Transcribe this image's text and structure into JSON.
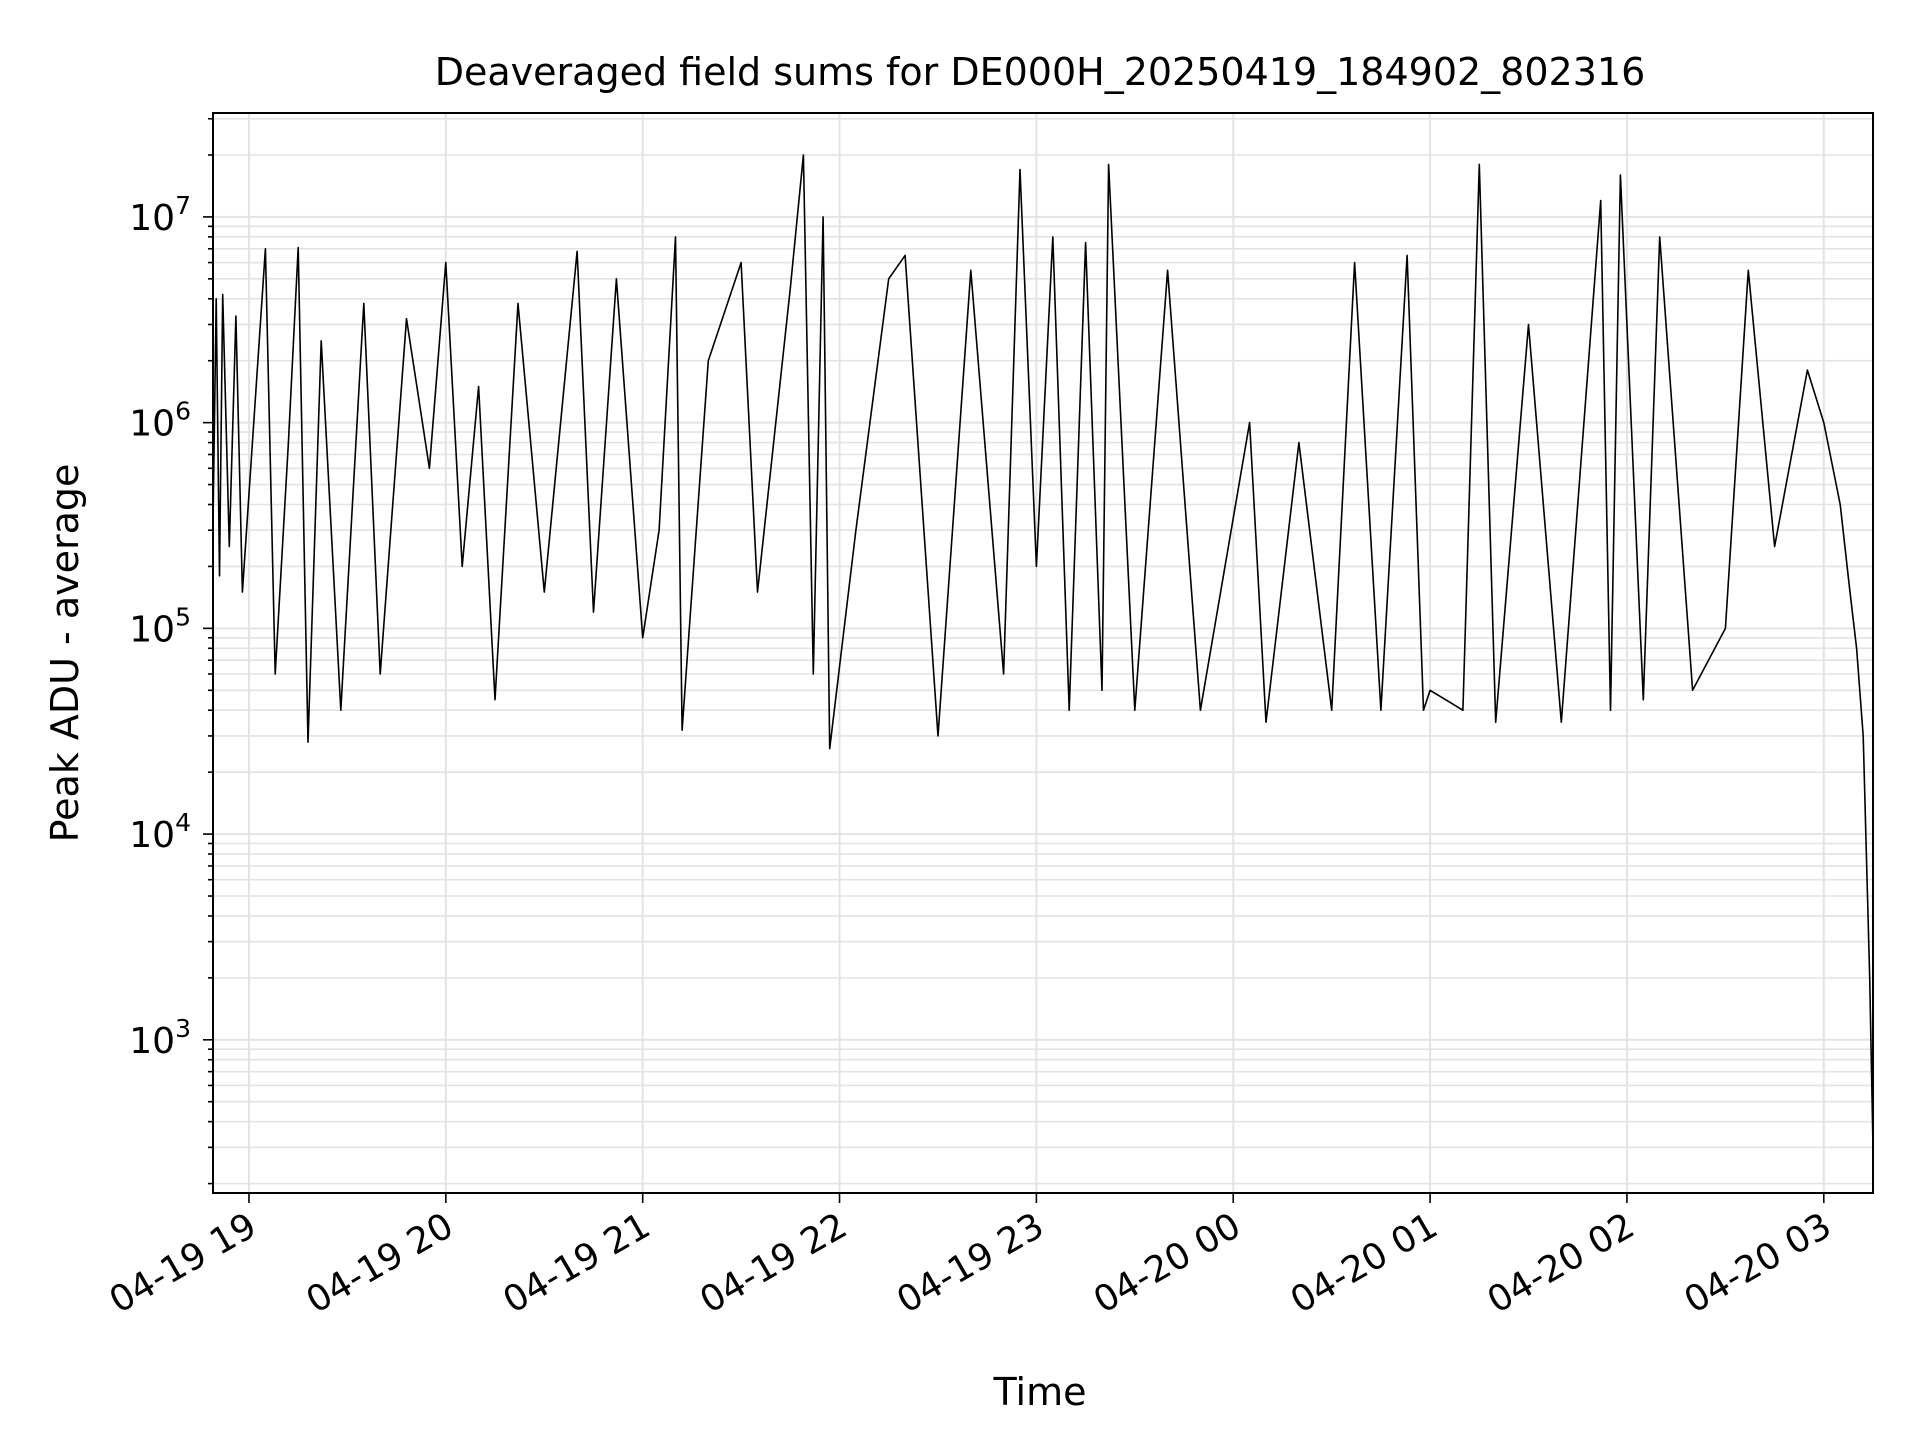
{
  "chart_data": {
    "type": "line",
    "title": "Deaveraged field sums for DE000H_20250419_184902_802316",
    "xlabel": "Time",
    "ylabel": "Peak ADU - average",
    "yscale": "log",
    "grid": true,
    "ylim": [
      180,
      32000000
    ],
    "xlim": [
      "2025-04-19 18:49:02",
      "2025-04-20 03:15:00"
    ],
    "x_ticks": [
      "2025-04-19 19:00",
      "2025-04-19 20:00",
      "2025-04-19 21:00",
      "2025-04-19 22:00",
      "2025-04-19 23:00",
      "2025-04-20 00:00",
      "2025-04-20 01:00",
      "2025-04-20 02:00",
      "2025-04-20 03:00"
    ],
    "x_tick_labels": [
      "04-19 19",
      "04-19 20",
      "04-19 21",
      "04-19 22",
      "04-19 23",
      "04-20 00",
      "04-20 01",
      "04-20 02",
      "04-20 03"
    ],
    "y_ticks": [
      1000,
      10000,
      100000,
      1000000,
      10000000
    ],
    "y_tick_labels": [
      {
        "base": "10",
        "exp": "3"
      },
      {
        "base": "10",
        "exp": "4"
      },
      {
        "base": "10",
        "exp": "5"
      },
      {
        "base": "10",
        "exp": "6"
      },
      {
        "base": "10",
        "exp": "7"
      }
    ],
    "series": [
      {
        "color": "#000000",
        "points": [
          [
            "2025-04-19 18:49",
            300000
          ],
          [
            "2025-04-19 18:50",
            4000000
          ],
          [
            "2025-04-19 18:51",
            180000
          ],
          [
            "2025-04-19 18:52",
            4200000
          ],
          [
            "2025-04-19 18:54",
            250000
          ],
          [
            "2025-04-19 18:56",
            3300000
          ],
          [
            "2025-04-19 18:58",
            150000
          ],
          [
            "2025-04-19 19:05",
            7000000
          ],
          [
            "2025-04-19 19:08",
            60000
          ],
          [
            "2025-04-19 19:12",
            800000
          ],
          [
            "2025-04-19 19:15",
            7100000
          ],
          [
            "2025-04-19 19:18",
            28000
          ],
          [
            "2025-04-19 19:22",
            2500000
          ],
          [
            "2025-04-19 19:28",
            40000
          ],
          [
            "2025-04-19 19:35",
            3800000
          ],
          [
            "2025-04-19 19:40",
            60000
          ],
          [
            "2025-04-19 19:48",
            3200000
          ],
          [
            "2025-04-19 19:55",
            600000
          ],
          [
            "2025-04-19 20:00",
            6000000
          ],
          [
            "2025-04-19 20:05",
            200000
          ],
          [
            "2025-04-19 20:10",
            1500000
          ],
          [
            "2025-04-19 20:15",
            45000
          ],
          [
            "2025-04-19 20:22",
            3800000
          ],
          [
            "2025-04-19 20:30",
            150000
          ],
          [
            "2025-04-19 20:40",
            6800000
          ],
          [
            "2025-04-19 20:45",
            120000
          ],
          [
            "2025-04-19 20:52",
            5000000
          ],
          [
            "2025-04-19 21:00",
            90000
          ],
          [
            "2025-04-19 21:05",
            300000
          ],
          [
            "2025-04-19 21:10",
            8000000
          ],
          [
            "2025-04-19 21:12",
            32000
          ],
          [
            "2025-04-19 21:20",
            2000000
          ],
          [
            "2025-04-19 21:30",
            6000000
          ],
          [
            "2025-04-19 21:35",
            150000
          ],
          [
            "2025-04-19 21:45",
            4500000
          ],
          [
            "2025-04-19 21:49",
            20000000
          ],
          [
            "2025-04-19 21:52",
            60000
          ],
          [
            "2025-04-19 21:55",
            10000000
          ],
          [
            "2025-04-19 21:57",
            26000
          ],
          [
            "2025-04-19 22:05",
            300000
          ],
          [
            "2025-04-19 22:15",
            5000000
          ],
          [
            "2025-04-19 22:20",
            6500000
          ],
          [
            "2025-04-19 22:30",
            30000
          ],
          [
            "2025-04-19 22:40",
            5500000
          ],
          [
            "2025-04-19 22:50",
            60000
          ],
          [
            "2025-04-19 22:55",
            17000000
          ],
          [
            "2025-04-19 23:00",
            200000
          ],
          [
            "2025-04-19 23:05",
            8000000
          ],
          [
            "2025-04-19 23:10",
            40000
          ],
          [
            "2025-04-19 23:15",
            7500000
          ],
          [
            "2025-04-19 23:20",
            50000
          ],
          [
            "2025-04-19 23:22",
            18000000
          ],
          [
            "2025-04-19 23:30",
            40000
          ],
          [
            "2025-04-19 23:40",
            5500000
          ],
          [
            "2025-04-19 23:50",
            40000
          ],
          [
            "2025-04-20 00:05",
            1000000
          ],
          [
            "2025-04-20 00:10",
            35000
          ],
          [
            "2025-04-20 00:20",
            800000
          ],
          [
            "2025-04-20 00:30",
            40000
          ],
          [
            "2025-04-20 00:37",
            6000000
          ],
          [
            "2025-04-20 00:45",
            40000
          ],
          [
            "2025-04-20 00:53",
            6500000
          ],
          [
            "2025-04-20 00:58",
            40000
          ],
          [
            "2025-04-20 01:00",
            50000
          ],
          [
            "2025-04-20 01:10",
            40000
          ],
          [
            "2025-04-20 01:15",
            18000000
          ],
          [
            "2025-04-20 01:20",
            35000
          ],
          [
            "2025-04-20 01:30",
            3000000
          ],
          [
            "2025-04-20 01:40",
            35000
          ],
          [
            "2025-04-20 01:52",
            12000000
          ],
          [
            "2025-04-20 01:55",
            40000
          ],
          [
            "2025-04-20 01:58",
            16000000
          ],
          [
            "2025-04-20 02:05",
            45000
          ],
          [
            "2025-04-20 02:10",
            8000000
          ],
          [
            "2025-04-20 02:20",
            50000
          ],
          [
            "2025-04-20 02:30",
            100000
          ],
          [
            "2025-04-20 02:37",
            5500000
          ],
          [
            "2025-04-20 02:45",
            250000
          ],
          [
            "2025-04-20 02:55",
            1800000
          ],
          [
            "2025-04-20 03:00",
            1000000
          ],
          [
            "2025-04-20 03:05",
            400000
          ],
          [
            "2025-04-20 03:08",
            150000
          ],
          [
            "2025-04-20 03:10",
            80000
          ],
          [
            "2025-04-20 03:12",
            30000
          ],
          [
            "2025-04-20 03:14",
            2000
          ],
          [
            "2025-04-20 03:15",
            300
          ]
        ]
      }
    ]
  }
}
